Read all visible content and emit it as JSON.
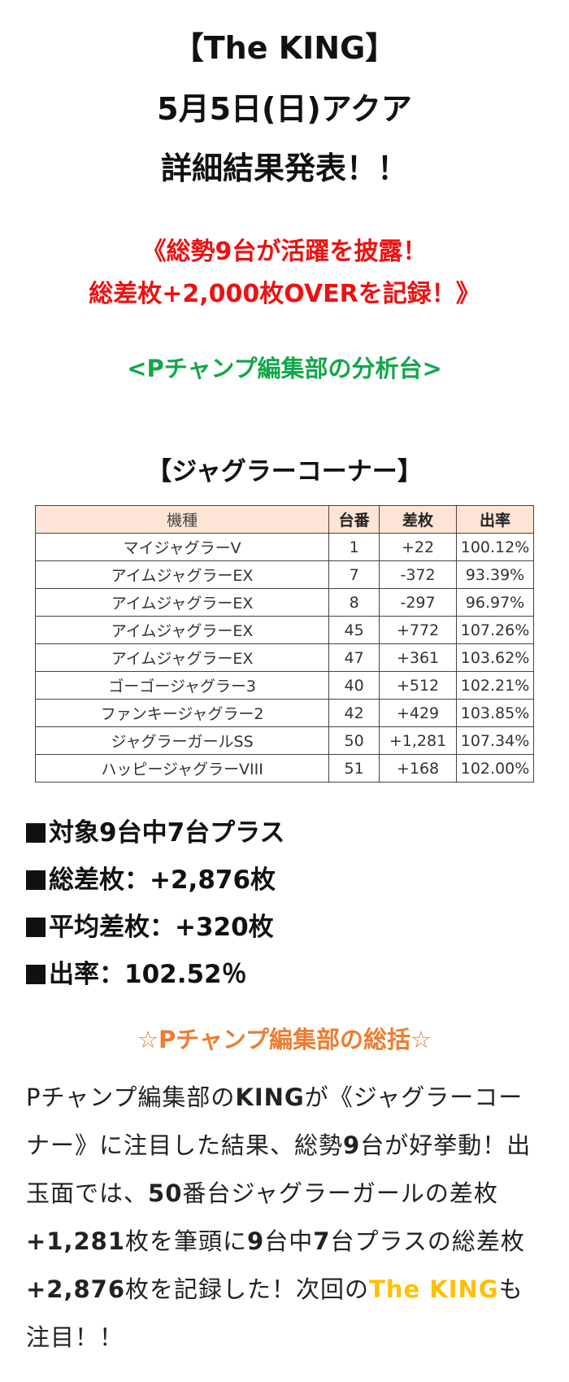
{
  "header": {
    "title_line1": "【The KING】",
    "title_line2": "5月5日(日)アクア",
    "title_line3": "詳細結果発表！！"
  },
  "headline": {
    "line1": "《総勢9台が活躍を披露！",
    "line2": "総差枚+2,000枚OVERを記録！》",
    "color": "#ee1111"
  },
  "subheading": {
    "text": "<Pチャンプ編集部の分析台>",
    "color": "#11a84a"
  },
  "corner_title": "【ジャグラーコーナー】",
  "table": {
    "header_bg": "#fce4d6",
    "columns": [
      "機種",
      "台番",
      "差枚",
      "出率"
    ],
    "rows": [
      {
        "model": "マイジャグラーV",
        "machine_no": "1",
        "diff": "+22",
        "rate": "100.12%"
      },
      {
        "model": "アイムジャグラーEX",
        "machine_no": "7",
        "diff": "-372",
        "rate": "93.39%"
      },
      {
        "model": "アイムジャグラーEX",
        "machine_no": "8",
        "diff": "-297",
        "rate": "96.97%"
      },
      {
        "model": "アイムジャグラーEX",
        "machine_no": "45",
        "diff": "+772",
        "rate": "107.26%"
      },
      {
        "model": "アイムジャグラーEX",
        "machine_no": "47",
        "diff": "+361",
        "rate": "103.62%"
      },
      {
        "model": "ゴーゴージャグラー3",
        "machine_no": "40",
        "diff": "+512",
        "rate": "102.21%"
      },
      {
        "model": "ファンキージャグラー2",
        "machine_no": "42",
        "diff": "+429",
        "rate": "103.85%"
      },
      {
        "model": "ジャグラーガールSS",
        "machine_no": "50",
        "diff": "+1,281",
        "rate": "107.34%"
      },
      {
        "model": "ハッピージャグラーVIII",
        "machine_no": "51",
        "diff": "+168",
        "rate": "102.00%"
      }
    ]
  },
  "stats": [
    {
      "text": "対象9台中7台プラス"
    },
    {
      "text": "総差枚：+2,876枚"
    },
    {
      "text": "平均差枚：+320枚"
    },
    {
      "text": "出率：102.52％"
    }
  ],
  "summary": {
    "title": "☆Pチャンプ編集部の総括☆",
    "title_color": "#ed7d31",
    "segments": [
      {
        "text": "Pチャンプ編集部の",
        "style": "normal"
      },
      {
        "text": "KING",
        "style": "bold"
      },
      {
        "text": "が《ジャグラーコーナー》に注目した結果、総勢",
        "style": "normal"
      },
      {
        "text": "9",
        "style": "bold"
      },
      {
        "text": "台が好挙動！出玉面では、",
        "style": "normal"
      },
      {
        "text": "50",
        "style": "bold"
      },
      {
        "text": "番台ジャグラーガールの差枚",
        "style": "normal"
      },
      {
        "text": "+1,281",
        "style": "bold"
      },
      {
        "text": "枚を筆頭に",
        "style": "normal"
      },
      {
        "text": "9",
        "style": "bold"
      },
      {
        "text": "台中",
        "style": "normal"
      },
      {
        "text": "7",
        "style": "bold"
      },
      {
        "text": "台プラスの総差枚",
        "style": "normal"
      },
      {
        "text": "+2,876",
        "style": "bold"
      },
      {
        "text": "枚を記録した！次回の",
        "style": "normal"
      },
      {
        "text": "The KING",
        "style": "yellow"
      },
      {
        "text": "も注目！！",
        "style": "normal"
      }
    ],
    "highlight_color": "#ffc000"
  }
}
